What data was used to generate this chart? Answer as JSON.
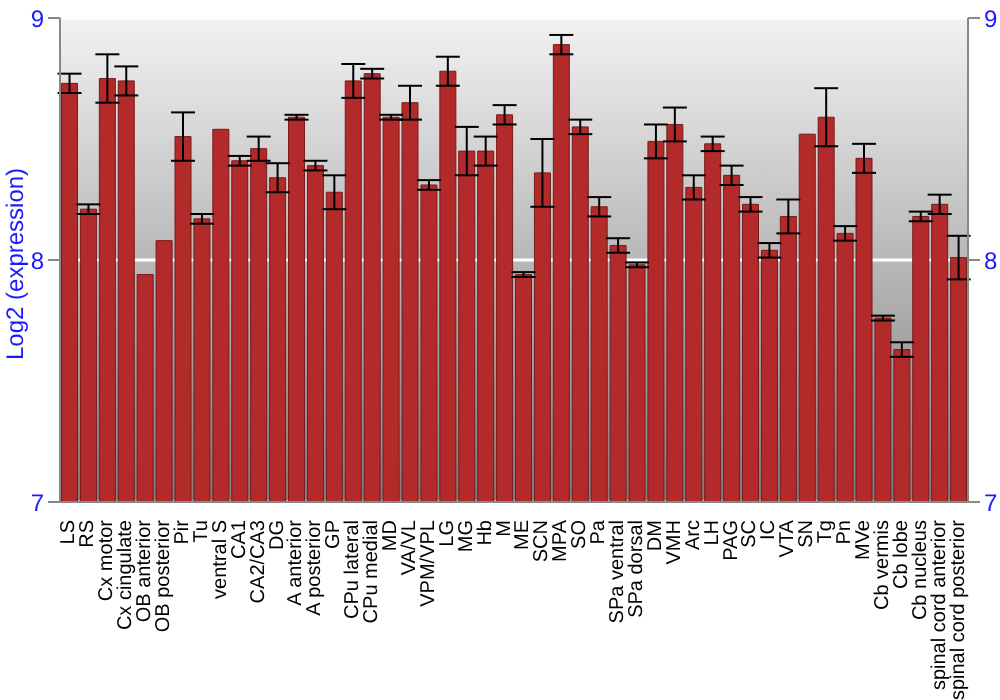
{
  "chart_data": {
    "type": "bar",
    "ylabel": "Log2 (expression)",
    "categories": [
      "LS",
      "RS",
      "Cx motor",
      "Cx cingulate",
      "OB anterior",
      "OB posterior",
      "Pir",
      "Tu",
      "ventral S",
      "CA1",
      "CA2/CA3",
      "DG",
      "A anterior",
      "A posterior",
      "GP",
      "CPu lateral",
      "CPu medial",
      "MD",
      "VA/VL",
      "VPM/VPL",
      "LG",
      "MG",
      "Hb",
      "M",
      "ME",
      "SCN",
      "MPA",
      "SO",
      "Pa",
      "SPa ventral",
      "SPa dorsal",
      "DM",
      "VMH",
      "Arc",
      "LH",
      "PAG",
      "SC",
      "IC",
      "VTA",
      "SN",
      "Tg",
      "Pn",
      "MVe",
      "Cb vermis",
      "Cb lobe",
      "Cb nucleus",
      "spinal cord anterior",
      "spinal cord posterior"
    ],
    "values": [
      8.73,
      8.21,
      8.75,
      8.74,
      7.94,
      8.08,
      8.51,
      8.17,
      8.54,
      8.41,
      8.46,
      8.34,
      8.59,
      8.39,
      8.28,
      8.74,
      8.77,
      8.59,
      8.65,
      8.31,
      8.78,
      8.45,
      8.45,
      8.6,
      7.94,
      8.36,
      8.89,
      8.55,
      8.22,
      8.06,
      7.98,
      8.49,
      8.56,
      8.3,
      8.48,
      8.35,
      8.23,
      8.04,
      8.18,
      8.52,
      8.59,
      8.11,
      8.42,
      7.76,
      7.63,
      8.18,
      8.23,
      8.01
    ],
    "errors": [
      0.04,
      0.02,
      0.1,
      0.06,
      0,
      0,
      0.1,
      0.02,
      0,
      0.02,
      0.05,
      0.06,
      0.01,
      0.02,
      0.07,
      0.07,
      0.02,
      0.01,
      0.07,
      0.02,
      0.06,
      0.1,
      0.06,
      0.04,
      0.01,
      0.14,
      0.04,
      0.03,
      0.04,
      0.03,
      0.01,
      0.07,
      0.07,
      0.05,
      0.03,
      0.04,
      0.03,
      0.03,
      0.07,
      0,
      0.12,
      0.03,
      0.06,
      0.01,
      0.03,
      0.02,
      0.04,
      0.09
    ],
    "color": "#b22a2a",
    "ylim": [
      7,
      9
    ],
    "yticks": [
      7,
      8,
      9
    ],
    "y2lim": [
      7,
      9
    ],
    "y2ticks": [
      7,
      8,
      9
    ],
    "grid": "y"
  }
}
